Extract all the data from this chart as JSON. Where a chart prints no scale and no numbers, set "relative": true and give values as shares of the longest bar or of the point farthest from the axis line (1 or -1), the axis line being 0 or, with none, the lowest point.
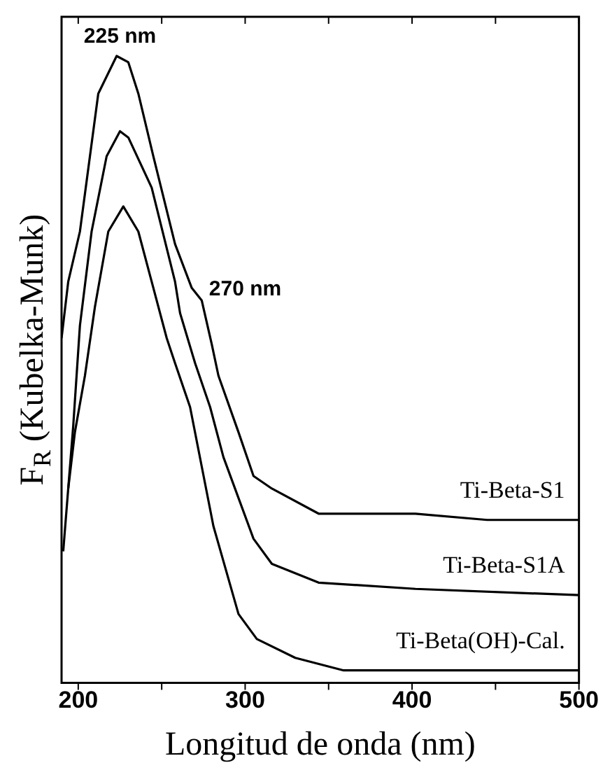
{
  "chart_data": {
    "type": "line",
    "relative": true,
    "xlabel": "Longitud de onda (nm)",
    "ylabel": "F$_{R}$ (Kubelka-Munk)",
    "xlim": [
      190,
      500
    ],
    "xticks": [
      200,
      {
        "value": 250,
        "label": null
      },
      300,
      {
        "value": 350,
        "label": null
      },
      400,
      {
        "value": 450,
        "label": null
      },
      500
    ],
    "grid": false,
    "legend": false,
    "marker": "none",
    "line_style": "solid",
    "annotations": [
      {
        "text": "225 nm",
        "x": 225,
        "y": 1.0
      },
      {
        "text": "270 nm",
        "x": 270,
        "y": 0.62
      }
    ],
    "series": [
      {
        "name": "Ti-Beta-S1",
        "color": "#000000",
        "x": [
          190,
          194,
          201,
          212,
          223,
          230,
          236,
          245,
          258,
          268,
          274,
          280,
          284,
          296,
          305,
          316,
          344,
          373,
          402,
          445,
          500
        ],
        "values": [
          0.55,
          0.64,
          0.72,
          0.94,
          1.0,
          0.99,
          0.94,
          0.84,
          0.7,
          0.63,
          0.61,
          0.54,
          0.49,
          0.4,
          0.33,
          0.31,
          0.27,
          0.27,
          0.27,
          0.26,
          0.26
        ]
      },
      {
        "name": "Ti-Beta-S1A",
        "color": "#000000",
        "x": [
          194,
          197,
          201,
          208,
          217,
          225,
          230,
          244,
          258,
          261,
          270,
          279,
          287,
          305,
          316,
          344,
          402,
          500
        ],
        "values": [
          0.31,
          0.41,
          0.57,
          0.72,
          0.84,
          0.88,
          0.87,
          0.79,
          0.64,
          0.59,
          0.51,
          0.44,
          0.36,
          0.23,
          0.19,
          0.16,
          0.15,
          0.14
        ]
      },
      {
        "name": "Ti-Beta(OH)-Cal.",
        "color": "#000000",
        "x": [
          191,
          194,
          198,
          204,
          210,
          218,
          227,
          236,
          244,
          253,
          258,
          267,
          281,
          296,
          307,
          330,
          359,
          402,
          500
        ],
        "values": [
          0.21,
          0.31,
          0.4,
          0.49,
          0.6,
          0.72,
          0.76,
          0.72,
          0.64,
          0.55,
          0.51,
          0.44,
          0.25,
          0.11,
          0.07,
          0.04,
          0.02,
          0.02,
          0.02
        ]
      }
    ]
  }
}
